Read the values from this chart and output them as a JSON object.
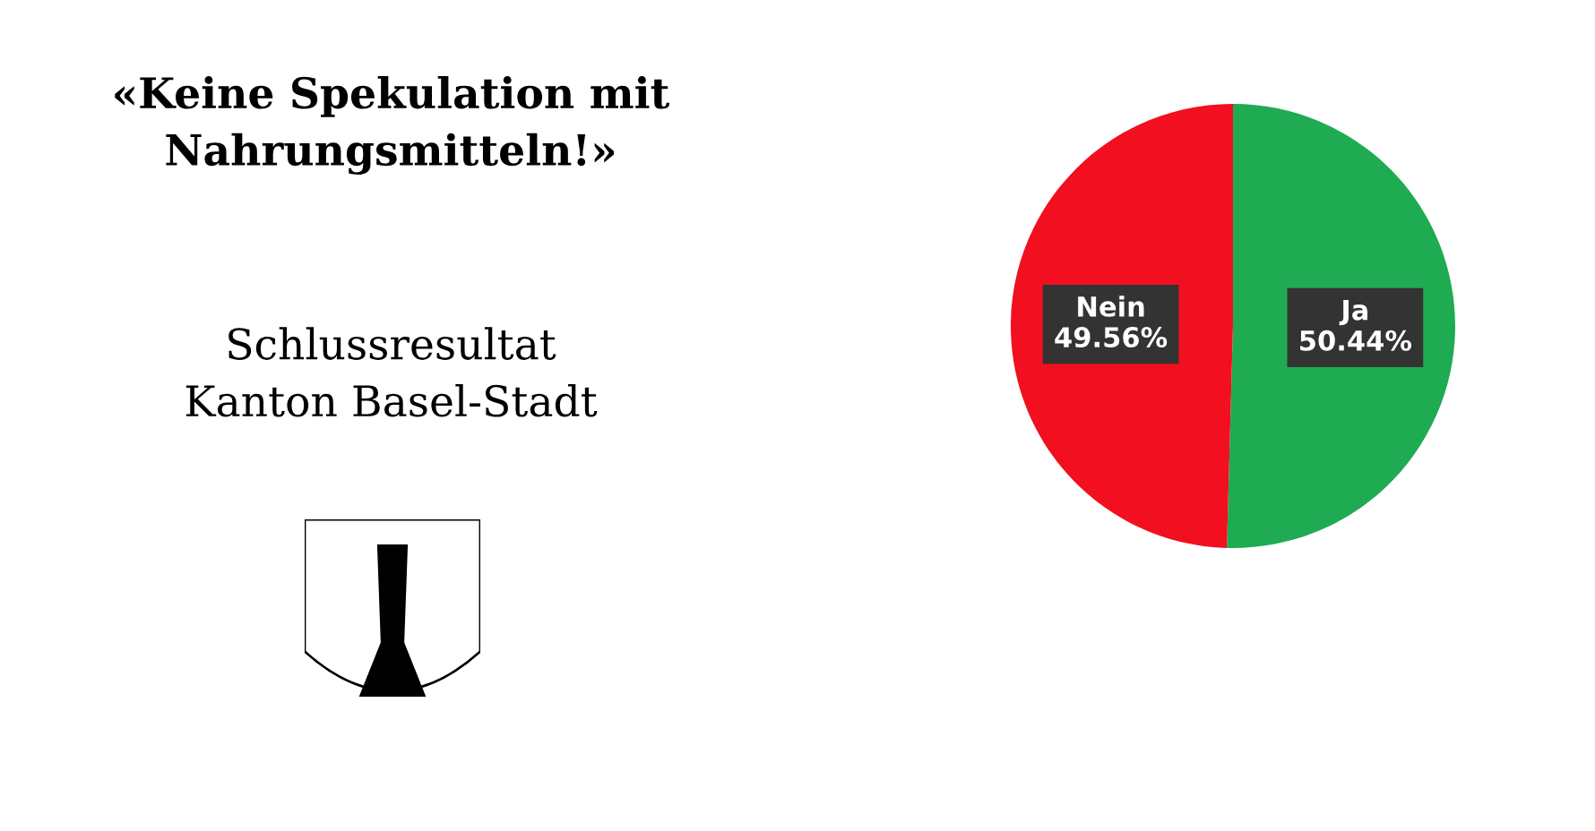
{
  "chart_data": {
    "type": "pie",
    "title": "«Keine Spekulation mit Nahrungsmitteln!»",
    "subtitle": "Schlussresultat\nKanton Basel-Stadt",
    "categories": [
      "Ja",
      "Nein"
    ],
    "values": [
      50.44,
      49.56
    ],
    "colors": [
      "#1eab52",
      "#f20f1f"
    ],
    "value_labels": [
      "50.44%",
      "49.56%"
    ]
  }
}
